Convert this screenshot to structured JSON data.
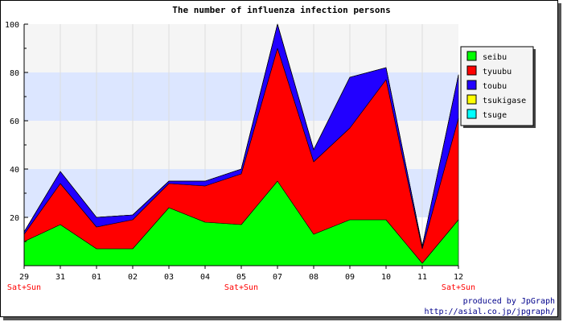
{
  "chart_data": {
    "type": "area",
    "stacked": true,
    "title": "The number of influenza infection persons",
    "x": [
      "29",
      "31",
      "01",
      "02",
      "03",
      "04",
      "05",
      "07",
      "08",
      "09",
      "10",
      "11",
      "12"
    ],
    "weekend_labels": [
      {
        "index": 0,
        "text": "Sat+Sun"
      },
      {
        "index": 6,
        "text": "Sat+Sun"
      },
      {
        "index": 12,
        "text": "Sat+Sun"
      }
    ],
    "ylim": [
      0,
      100
    ],
    "yticks": [
      20,
      40,
      60,
      80,
      100
    ],
    "grid": true,
    "legend_position": "right",
    "series": [
      {
        "name": "seibu",
        "color": "#00ff00",
        "values": [
          10,
          17,
          7,
          7,
          24,
          18,
          17,
          35,
          13,
          19,
          19,
          1,
          19
        ]
      },
      {
        "name": "tyuubu",
        "color": "#ff0000",
        "values": [
          3,
          17,
          9,
          12,
          10,
          15,
          21,
          55,
          30,
          38,
          58,
          6,
          42
        ]
      },
      {
        "name": "toubu",
        "color": "#2200ff",
        "values": [
          1,
          5,
          4,
          2,
          1,
          2,
          2,
          10,
          5,
          21,
          5,
          1,
          18
        ]
      },
      {
        "name": "tsukigase",
        "color": "#ffff00",
        "values": [
          0,
          0,
          0,
          0,
          0,
          0,
          0,
          0,
          0,
          0,
          0,
          0,
          0
        ]
      },
      {
        "name": "tsuge",
        "color": "#00ffff",
        "values": [
          0,
          0,
          0,
          0,
          0,
          0,
          0,
          0,
          0,
          0,
          0,
          0,
          0
        ]
      }
    ]
  },
  "credits": {
    "line1": "produced by JpGraph",
    "line2": "http://asial.co.jp/jpgraph/"
  }
}
